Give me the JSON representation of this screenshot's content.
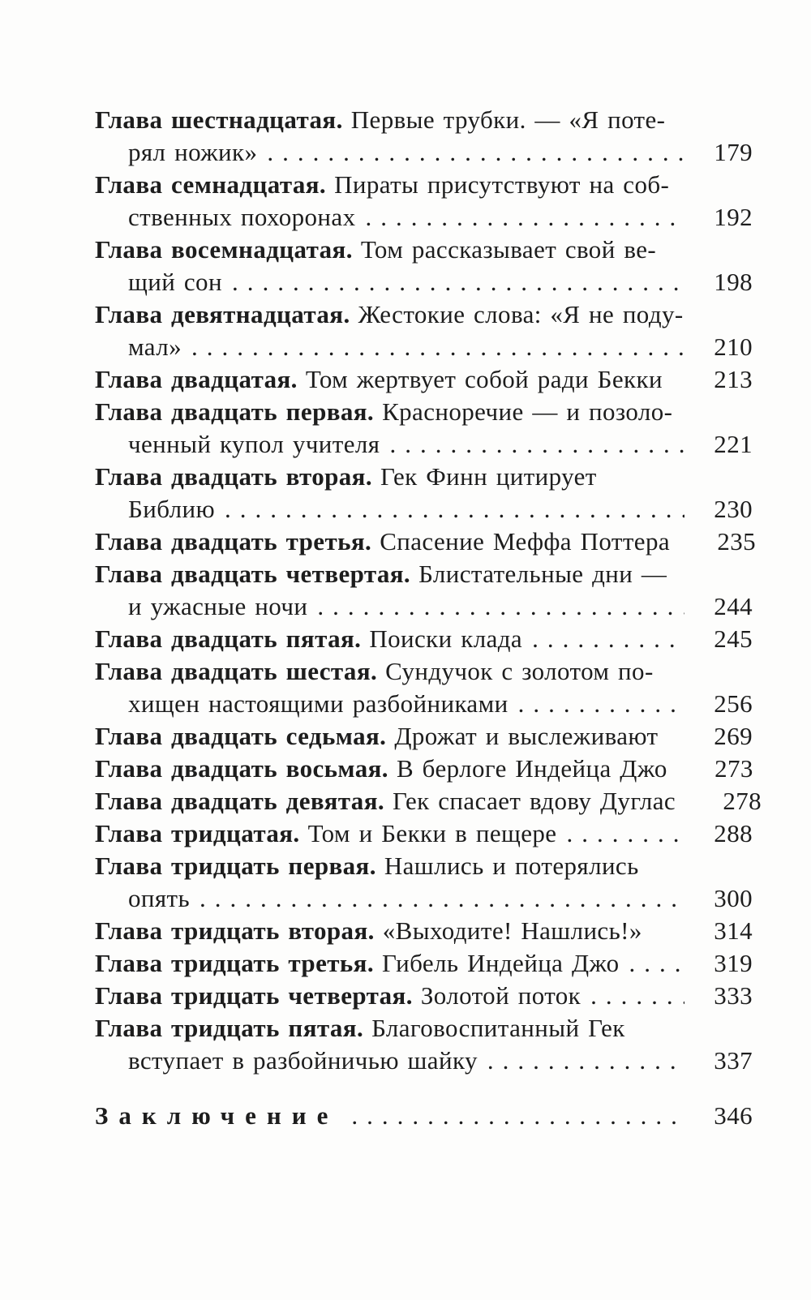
{
  "document": {
    "kind": "book-table-of-contents-scan",
    "language": "ru",
    "background_color": "#fdfdfc",
    "text_color": "#1d1d1d"
  },
  "toc": {
    "lines": [
      {
        "chapter": "Глава шестнадцатая.",
        "title": "Первые трубки. — «Я поте-",
        "indent": false,
        "dots": false,
        "page": "",
        "spaced": false,
        "gap_before": false
      },
      {
        "chapter": "",
        "title": "рял ножик»",
        "indent": true,
        "dots": true,
        "page": "179",
        "spaced": false,
        "gap_before": false
      },
      {
        "chapter": "Глава семнадцатая.",
        "title": "Пираты присутствуют на соб-",
        "indent": false,
        "dots": false,
        "page": "",
        "spaced": false,
        "gap_before": false
      },
      {
        "chapter": "",
        "title": "ственных похоронах",
        "indent": true,
        "dots": true,
        "page": "192",
        "spaced": false,
        "gap_before": false
      },
      {
        "chapter": "Глава восемнадцатая.",
        "title": "Том рассказывает свой ве-",
        "indent": false,
        "dots": false,
        "page": "",
        "spaced": false,
        "gap_before": false
      },
      {
        "chapter": "",
        "title": "щий сон",
        "indent": true,
        "dots": true,
        "page": "198",
        "spaced": false,
        "gap_before": false
      },
      {
        "chapter": "Глава девятнадцатая.",
        "title": "Жестокие слова: «Я не поду-",
        "indent": false,
        "dots": false,
        "page": "",
        "spaced": false,
        "gap_before": false
      },
      {
        "chapter": "",
        "title": "мал»",
        "indent": true,
        "dots": true,
        "page": "210",
        "spaced": false,
        "gap_before": false
      },
      {
        "chapter": "Глава двадцатая.",
        "title": "Том жертвует собой ради Бекки",
        "indent": false,
        "dots": false,
        "page": "213",
        "spaced": false,
        "gap_before": false
      },
      {
        "chapter": "Глава двадцать первая.",
        "title": "Красноречие — и позоло-",
        "indent": false,
        "dots": false,
        "page": "",
        "spaced": false,
        "gap_before": false
      },
      {
        "chapter": "",
        "title": "ченный купол учителя",
        "indent": true,
        "dots": true,
        "page": "221",
        "spaced": false,
        "gap_before": false
      },
      {
        "chapter": "Глава двадцать вторая.",
        "title": "Гек Финн цитирует",
        "indent": false,
        "dots": false,
        "page": "",
        "spaced": false,
        "gap_before": false
      },
      {
        "chapter": "",
        "title": "Библию",
        "indent": true,
        "dots": true,
        "page": "230",
        "spaced": false,
        "gap_before": false
      },
      {
        "chapter": "Глава двадцать третья.",
        "title": "Спасение Меффа Поттера",
        "indent": false,
        "dots": false,
        "page": "235",
        "spaced": false,
        "gap_before": false
      },
      {
        "chapter": "Глава двадцать четвертая.",
        "title": "Блистательные дни —",
        "indent": false,
        "dots": false,
        "page": "",
        "spaced": false,
        "gap_before": false
      },
      {
        "chapter": "",
        "title": "и ужасные ночи",
        "indent": true,
        "dots": true,
        "page": "244",
        "spaced": false,
        "gap_before": false
      },
      {
        "chapter": "Глава двадцать пятая.",
        "title": "Поиски клада",
        "indent": false,
        "dots": true,
        "page": "245",
        "spaced": false,
        "gap_before": false
      },
      {
        "chapter": "Глава двадцать шестая.",
        "title": "Сундучок с золотом по-",
        "indent": false,
        "dots": false,
        "page": "",
        "spaced": false,
        "gap_before": false
      },
      {
        "chapter": "",
        "title": "хищен настоящими разбойниками",
        "indent": true,
        "dots": true,
        "page": "256",
        "spaced": false,
        "gap_before": false
      },
      {
        "chapter": "Глава двадцать седьмая.",
        "title": "Дрожат и выслеживают",
        "indent": false,
        "dots": false,
        "page": "269",
        "spaced": false,
        "gap_before": false
      },
      {
        "chapter": "Глава двадцать восьмая.",
        "title": "В берлоге Индейца Джо",
        "indent": false,
        "dots": false,
        "page": "273",
        "spaced": false,
        "gap_before": false
      },
      {
        "chapter": "Глава двадцать девятая.",
        "title": "Гек спасает вдову Дуглас",
        "indent": false,
        "dots": false,
        "page": "278",
        "spaced": false,
        "gap_before": false
      },
      {
        "chapter": "Глава тридцатая.",
        "title": "Том и Бекки в пещере",
        "indent": false,
        "dots": true,
        "page": "288",
        "spaced": false,
        "gap_before": false
      },
      {
        "chapter": "Глава тридцать первая.",
        "title": "Нашлись и потерялись",
        "indent": false,
        "dots": false,
        "page": "",
        "spaced": false,
        "gap_before": false
      },
      {
        "chapter": "",
        "title": "опять",
        "indent": true,
        "dots": true,
        "page": "300",
        "spaced": false,
        "gap_before": false
      },
      {
        "chapter": "Глава тридцать вторая.",
        "title": "«Выходите! Нашлись!»",
        "indent": false,
        "dots": false,
        "page": "314",
        "spaced": false,
        "gap_before": false
      },
      {
        "chapter": "Глава тридцать третья.",
        "title": "Гибель Индейца Джо",
        "indent": false,
        "dots": true,
        "page": "319",
        "spaced": false,
        "gap_before": false
      },
      {
        "chapter": "Глава тридцать четвертая.",
        "title": "Золотой поток",
        "indent": false,
        "dots": true,
        "page": "333",
        "spaced": false,
        "gap_before": false
      },
      {
        "chapter": "Глава тридцать пятая.",
        "title": "Благовоспитанный Гек",
        "indent": false,
        "dots": false,
        "page": "",
        "spaced": false,
        "gap_before": false
      },
      {
        "chapter": "",
        "title": "вступает в разбойничью шайку",
        "indent": true,
        "dots": true,
        "page": "337",
        "spaced": false,
        "gap_before": false
      },
      {
        "chapter": "Заключение",
        "title": "",
        "indent": false,
        "dots": true,
        "page": "346",
        "spaced": true,
        "gap_before": true
      }
    ]
  }
}
